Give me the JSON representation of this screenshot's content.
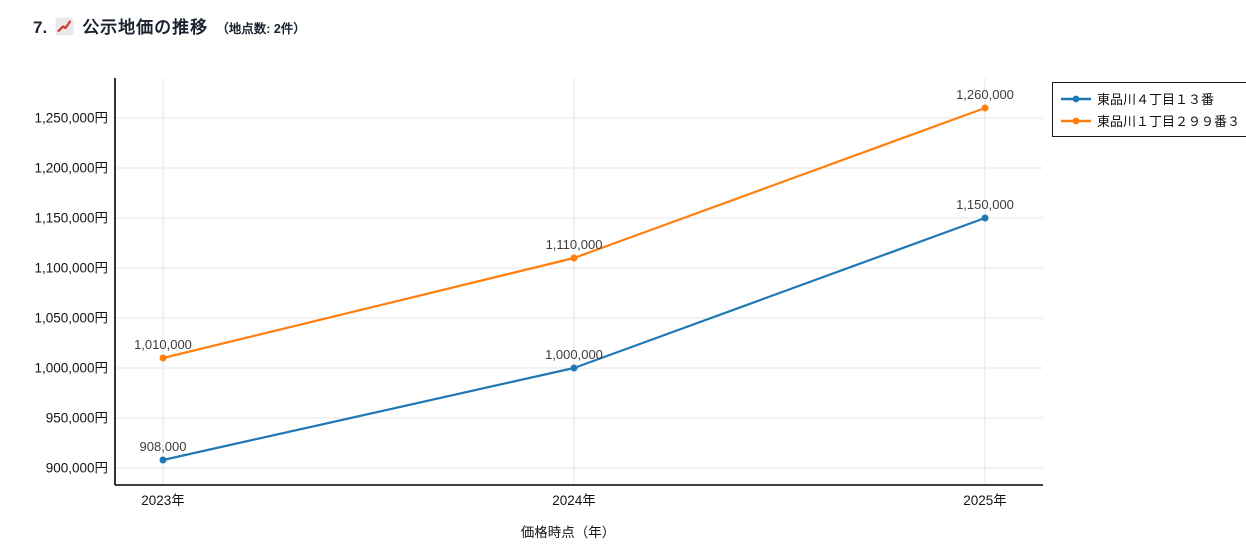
{
  "page": {
    "title_number": "7.",
    "title": "公示地価の推移",
    "subtitle": "（地点数: 2件）",
    "title_icon": "chart-increasing-emoji"
  },
  "chart_data": {
    "type": "line",
    "x": [
      2023,
      2024,
      2025
    ],
    "x_tick_labels": [
      "2023年",
      "2024年",
      "2025年"
    ],
    "xlabel": "価格時点（年）",
    "ylim": [
      880000,
      1285000
    ],
    "y_ticks": [
      900000,
      950000,
      1000000,
      1050000,
      1100000,
      1150000,
      1200000,
      1250000
    ],
    "y_tick_labels": [
      "900,000円",
      "950,000円",
      "1,000,000円",
      "1,050,000円",
      "1,100,000円",
      "1,150,000円",
      "1,200,000円",
      "1,250,000円"
    ],
    "grid": true,
    "legend_position": "outside-top-right",
    "series": [
      {
        "name": "東品川４丁目１３番",
        "color": "#1f77b4",
        "values": [
          908000,
          1000000,
          1150000
        ],
        "point_labels": [
          "908,000",
          "1,000,000",
          "1,150,000"
        ]
      },
      {
        "name": "東品川１丁目２９９番３",
        "color": "#ff7f0e",
        "values": [
          1010000,
          1110000,
          1260000
        ],
        "point_labels": [
          "1,010,000",
          "1,110,000",
          "1,260,000"
        ]
      }
    ],
    "colors": {
      "gridline": "#e6e6e6",
      "axis": "#000000",
      "tick_label": "#141414",
      "point_label": "#3d3d3d",
      "emoji_bg": "#e9e9eb",
      "emoji_line": "#d7372f"
    }
  }
}
